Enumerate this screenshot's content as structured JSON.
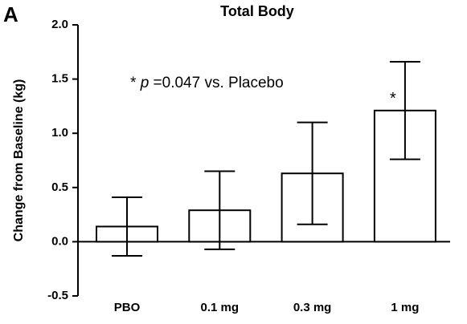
{
  "chart_data": {
    "type": "bar",
    "panel_label": "A",
    "title": "Total Body",
    "y_label": "Change from Baseline (kg)",
    "annotation": [
      "*",
      "p",
      "=0.047 vs. Placebo"
    ],
    "categories": [
      "PBO",
      "0.1 mg",
      "0.3 mg",
      "1 mg"
    ],
    "values": [
      0.14,
      0.29,
      0.63,
      1.21
    ],
    "errors": [
      0.27,
      0.36,
      0.47,
      0.45
    ],
    "significance": [
      null,
      null,
      null,
      "*"
    ],
    "color": "#ffffff",
    "edge_color": "#000000",
    "ylim": [
      -0.5,
      2.0
    ],
    "yticks": [
      -0.5,
      {
        "value": 0,
        "label": "0.0"
      },
      0.5,
      {
        "value": 1,
        "label": "1.0"
      },
      1.5,
      {
        "value": 2,
        "label": "2.0"
      }
    ],
    "grid": false
  }
}
